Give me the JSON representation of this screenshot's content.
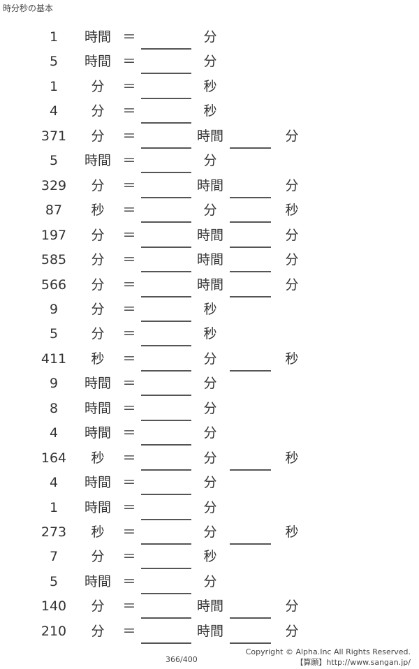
{
  "title": "時分秒の基本",
  "equals": "＝",
  "rows": [
    {
      "n": "1",
      "u1": "時間",
      "u2": "分",
      "u3": ""
    },
    {
      "n": "5",
      "u1": "時間",
      "u2": "分",
      "u3": ""
    },
    {
      "n": "1",
      "u1": "分",
      "u2": "秒",
      "u3": ""
    },
    {
      "n": "4",
      "u1": "分",
      "u2": "秒",
      "u3": ""
    },
    {
      "n": "371",
      "u1": "分",
      "u2": "時間",
      "u3": "分"
    },
    {
      "n": "5",
      "u1": "時間",
      "u2": "分",
      "u3": ""
    },
    {
      "n": "329",
      "u1": "分",
      "u2": "時間",
      "u3": "分"
    },
    {
      "n": "87",
      "u1": "秒",
      "u2": "分",
      "u3": "秒"
    },
    {
      "n": "197",
      "u1": "分",
      "u2": "時間",
      "u3": "分"
    },
    {
      "n": "585",
      "u1": "分",
      "u2": "時間",
      "u3": "分"
    },
    {
      "n": "566",
      "u1": "分",
      "u2": "時間",
      "u3": "分"
    },
    {
      "n": "9",
      "u1": "分",
      "u2": "秒",
      "u3": ""
    },
    {
      "n": "5",
      "u1": "分",
      "u2": "秒",
      "u3": ""
    },
    {
      "n": "411",
      "u1": "秒",
      "u2": "分",
      "u3": "秒"
    },
    {
      "n": "9",
      "u1": "時間",
      "u2": "分",
      "u3": ""
    },
    {
      "n": "8",
      "u1": "時間",
      "u2": "分",
      "u3": ""
    },
    {
      "n": "4",
      "u1": "時間",
      "u2": "分",
      "u3": ""
    },
    {
      "n": "164",
      "u1": "秒",
      "u2": "分",
      "u3": "秒"
    },
    {
      "n": "4",
      "u1": "時間",
      "u2": "分",
      "u3": ""
    },
    {
      "n": "1",
      "u1": "時間",
      "u2": "分",
      "u3": ""
    },
    {
      "n": "273",
      "u1": "秒",
      "u2": "分",
      "u3": "秒"
    },
    {
      "n": "7",
      "u1": "分",
      "u2": "秒",
      "u3": ""
    },
    {
      "n": "5",
      "u1": "時間",
      "u2": "分",
      "u3": ""
    },
    {
      "n": "140",
      "u1": "分",
      "u2": "時間",
      "u3": "分"
    },
    {
      "n": "210",
      "u1": "分",
      "u2": "時間",
      "u3": "分"
    }
  ],
  "footer": {
    "page": "366/400",
    "copyright": "Copyright © Alpha.Inc All Rights Reserved.",
    "site": "【算願】http://www.sangan.jp/"
  }
}
